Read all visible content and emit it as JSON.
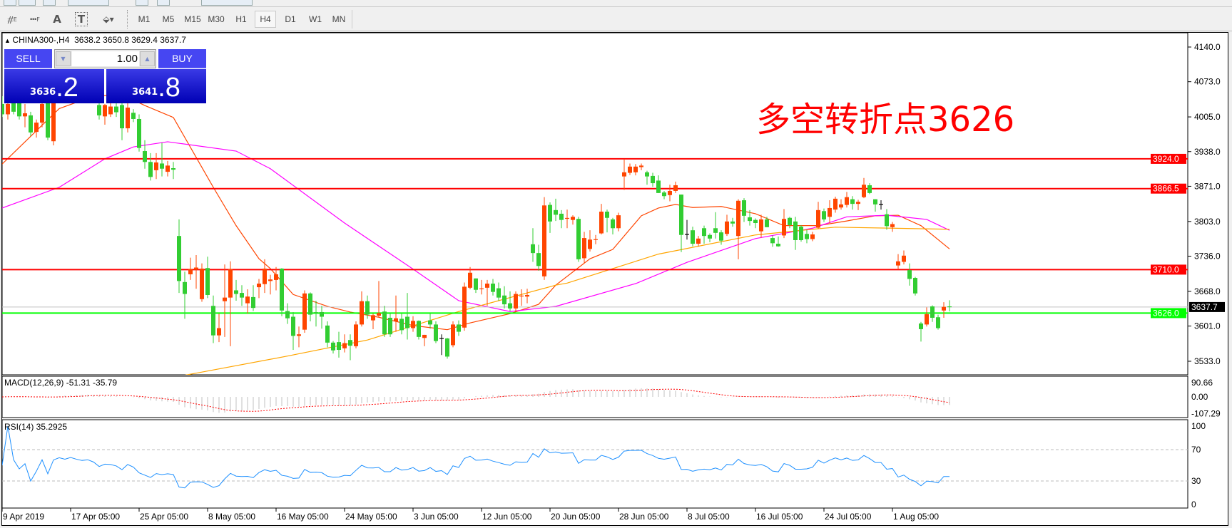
{
  "toolbar": {
    "tools": [
      {
        "name": "line-studies-elliott-icon",
        "glyph": "⧣",
        "sub": "E"
      },
      {
        "name": "fibonacci-icon",
        "glyph": "┅",
        "sub": "F"
      },
      {
        "name": "text-icon",
        "glyph": "A",
        "sub": ""
      },
      {
        "name": "text-label-icon",
        "glyph": "T",
        "sub": ""
      },
      {
        "name": "arrows-icon",
        "glyph": "⬙▾",
        "sub": ""
      }
    ],
    "timeframes": [
      "M1",
      "M5",
      "M15",
      "M30",
      "H1",
      "H4",
      "D1",
      "W1",
      "MN"
    ],
    "selected_timeframe": "H4"
  },
  "header": {
    "symbol": "CHINA300-,H4",
    "ohlc": "3638.2 3650.8 3629.4 3637.7"
  },
  "trade_panel": {
    "sell_label": "SELL",
    "buy_label": "BUY",
    "lot": "1.00",
    "sell_price_main": "3636",
    "sell_price_frac": ".2",
    "buy_price_main": "3641",
    "buy_price_frac": ".8"
  },
  "annotation": "多空转折点3626",
  "colors": {
    "up_candle": "#ff4500",
    "down_candle": "#32cd32",
    "ma_fast": "#ff4500",
    "ma_mid": "#ff00ff",
    "ma_slow": "#ffa500",
    "resistance": "#ff0000",
    "pivot": "#00ff00",
    "price_line": "#c0c0c0",
    "rsi": "#1e90ff",
    "macd_hist": "#c0c0c0",
    "macd_signal": "#ff0000"
  },
  "chart_data": {
    "type": "candlestick",
    "symbol": "CHINA300-",
    "timeframe": "H4",
    "ylim": [
      3500,
      4160
    ],
    "price_ticks": [
      "4140.0",
      "4073.0",
      "4005.0",
      "3938.0",
      "3871.0",
      "3803.0",
      "3736.0",
      "3668.0",
      "3601.0",
      "3533.0"
    ],
    "x_labels": [
      "9 Apr 2019",
      "17 Apr 05:00",
      "25 Apr 05:00",
      "8 May 05:00",
      "16 May 05:00",
      "24 May 05:00",
      "3 Jun 05:00",
      "12 Jun 05:00",
      "20 Jun 05:00",
      "28 Jun 05:00",
      "8 Jul 05:00",
      "16 Jul 05:00",
      "24 Jul 05:00",
      "1 Aug 05:00"
    ],
    "candles_ohlc": [
      [
        4030,
        4045,
        4005,
        4010
      ],
      [
        4010,
        4040,
        4000,
        4030
      ],
      [
        4035,
        4045,
        4010,
        4015
      ],
      [
        4035,
        4050,
        4000,
        4006
      ],
      [
        4006,
        4030,
        3985,
        4012
      ],
      [
        4008,
        4015,
        3968,
        3975
      ],
      [
        3976,
        4000,
        3965,
        3994
      ],
      [
        3994,
        4040,
        3985,
        4030
      ],
      [
        4045,
        4060,
        3960,
        3965
      ],
      [
        3958,
        4065,
        3950,
        4050
      ],
      [
        4050,
        4080,
        4040,
        4070
      ],
      [
        4070,
        4090,
        4055,
        4060
      ],
      [
        4060,
        4085,
        4050,
        4078
      ],
      [
        4078,
        4095,
        4060,
        4065
      ],
      [
        4065,
        4080,
        4045,
        4055
      ],
      [
        4055,
        4070,
        4040,
        4062
      ],
      [
        4062,
        4070,
        4035,
        4045
      ],
      [
        4028,
        4040,
        4000,
        4008
      ],
      [
        4006,
        4030,
        3990,
        4028
      ],
      [
        4010,
        4040,
        4005,
        4025
      ],
      [
        4025,
        4040,
        4005,
        4014
      ],
      [
        4028,
        4040,
        3960,
        3983
      ],
      [
        3983,
        4040,
        3975,
        4023
      ],
      [
        4013,
        4020,
        3995,
        4001
      ],
      [
        4001,
        4010,
        3938,
        3945
      ],
      [
        3939,
        3960,
        3905,
        3918
      ],
      [
        3918,
        3935,
        3882,
        3889
      ],
      [
        3902,
        3935,
        3885,
        3917
      ],
      [
        3915,
        3955,
        3890,
        3905
      ],
      [
        3899,
        3920,
        3890,
        3911
      ],
      [
        3906,
        3918,
        3885,
        3903
      ],
      [
        3775,
        3807,
        3665,
        3688
      ],
      [
        3686,
        3706,
        3615,
        3663
      ],
      [
        3701,
        3733,
        3690,
        3711
      ],
      [
        3710,
        3738,
        3673,
        3714
      ],
      [
        3653,
        3722,
        3648,
        3712
      ],
      [
        3713,
        3735,
        3655,
        3661
      ],
      [
        3640,
        3660,
        3568,
        3583
      ],
      [
        3583,
        3625,
        3570,
        3597
      ],
      [
        3649,
        3720,
        3580,
        3656
      ],
      [
        3656,
        3726,
        3562,
        3711
      ],
      [
        3670,
        3690,
        3650,
        3663
      ],
      [
        3665,
        3680,
        3640,
        3656
      ],
      [
        3645,
        3672,
        3625,
        3658
      ],
      [
        3657,
        3680,
        3630,
        3636
      ],
      [
        3676,
        3692,
        3655,
        3683
      ],
      [
        3682,
        3730,
        3665,
        3712
      ],
      [
        3688,
        3700,
        3662,
        3691
      ],
      [
        3690,
        3715,
        3670,
        3701
      ],
      [
        3712,
        3713,
        3620,
        3631
      ],
      [
        3630,
        3645,
        3605,
        3616
      ],
      [
        3619,
        3628,
        3555,
        3582
      ],
      [
        3582,
        3600,
        3560,
        3585
      ],
      [
        3594,
        3670,
        3588,
        3664
      ],
      [
        3664,
        3666,
        3610,
        3623
      ],
      [
        3627,
        3650,
        3600,
        3625
      ],
      [
        3628,
        3640,
        3596,
        3619
      ],
      [
        3602,
        3610,
        3560,
        3569
      ],
      [
        3569,
        3572,
        3548,
        3554
      ],
      [
        3570,
        3590,
        3540,
        3555
      ],
      [
        3558,
        3585,
        3550,
        3568
      ],
      [
        3574,
        3585,
        3535,
        3563
      ],
      [
        3562,
        3610,
        3558,
        3604
      ],
      [
        3604,
        3668,
        3600,
        3649
      ],
      [
        3649,
        3660,
        3615,
        3623
      ],
      [
        3612,
        3625,
        3595,
        3622
      ],
      [
        3621,
        3688,
        3618,
        3626
      ],
      [
        3629,
        3640,
        3580,
        3585
      ],
      [
        3617,
        3625,
        3580,
        3585
      ],
      [
        3610,
        3660,
        3590,
        3616
      ],
      [
        3615,
        3625,
        3585,
        3593
      ],
      [
        3619,
        3665,
        3575,
        3597
      ],
      [
        3597,
        3620,
        3590,
        3611
      ],
      [
        3611,
        3612,
        3575,
        3580
      ],
      [
        3578,
        3584,
        3562,
        3584
      ],
      [
        3612,
        3625,
        3596,
        3604
      ],
      [
        3604,
        3610,
        3568,
        3572
      ],
      [
        3577,
        3585,
        3545,
        3577
      ],
      [
        3577,
        3578,
        3538,
        3542
      ],
      [
        3564,
        3610,
        3560,
        3604
      ],
      [
        3604,
        3612,
        3582,
        3590
      ],
      [
        3598,
        3685,
        3592,
        3677
      ],
      [
        3675,
        3715,
        3672,
        3704
      ],
      [
        3693,
        3693,
        3665,
        3671
      ],
      [
        3672,
        3690,
        3662,
        3673
      ],
      [
        3675,
        3690,
        3640,
        3683
      ],
      [
        3683,
        3692,
        3660,
        3667
      ],
      [
        3674,
        3685,
        3650,
        3656
      ],
      [
        3660,
        3678,
        3635,
        3643
      ],
      [
        3645,
        3668,
        3630,
        3635
      ],
      [
        3635,
        3668,
        3628,
        3663
      ],
      [
        3657,
        3672,
        3640,
        3659
      ],
      [
        3658,
        3673,
        3645,
        3661
      ],
      [
        3759,
        3790,
        3725,
        3742
      ],
      [
        3742,
        3758,
        3708,
        3717
      ],
      [
        3697,
        3850,
        3690,
        3834
      ],
      [
        3835,
        3840,
        3781,
        3803
      ],
      [
        3825,
        3847,
        3804,
        3816
      ],
      [
        3818,
        3825,
        3790,
        3806
      ],
      [
        3808,
        3826,
        3790,
        3809
      ],
      [
        3806,
        3815,
        3797,
        3812
      ],
      [
        3808,
        3812,
        3725,
        3730
      ],
      [
        3732,
        3783,
        3723,
        3771
      ],
      [
        3750,
        3786,
        3745,
        3768
      ],
      [
        3766,
        3777,
        3759,
        3768
      ],
      [
        3780,
        3837,
        3778,
        3822
      ],
      [
        3822,
        3826,
        3782,
        3810
      ],
      [
        3807,
        3810,
        3778,
        3790
      ],
      [
        3790,
        3820,
        3784,
        3815
      ],
      [
        3890,
        3924,
        3864,
        3898
      ],
      [
        3897,
        3915,
        3893,
        3909
      ],
      [
        3898,
        3914,
        3892,
        3909
      ],
      [
        3908,
        3915,
        3902,
        3911
      ],
      [
        3898,
        3901,
        3874,
        3890
      ],
      [
        3891,
        3897,
        3870,
        3877
      ],
      [
        3882,
        3892,
        3858,
        3858
      ],
      [
        3859,
        3862,
        3846,
        3852
      ],
      [
        3854,
        3874,
        3842,
        3862
      ],
      [
        3862,
        3880,
        3858,
        3873
      ],
      [
        3855,
        3855,
        3744,
        3777
      ],
      [
        3778,
        3806,
        3768,
        3778
      ],
      [
        3786,
        3793,
        3755,
        3760
      ],
      [
        3760,
        3775,
        3755,
        3770
      ],
      [
        3790,
        3795,
        3760,
        3775
      ],
      [
        3777,
        3780,
        3763,
        3770
      ],
      [
        3790,
        3821,
        3770,
        3781
      ],
      [
        3782,
        3786,
        3758,
        3766
      ],
      [
        3779,
        3816,
        3775,
        3803
      ],
      [
        3803,
        3810,
        3793,
        3799
      ],
      [
        3775,
        3846,
        3730,
        3843
      ],
      [
        3844,
        3848,
        3802,
        3814
      ],
      [
        3811,
        3825,
        3795,
        3804
      ],
      [
        3806,
        3809,
        3790,
        3800
      ],
      [
        3784,
        3816,
        3772,
        3807
      ],
      [
        3807,
        3812,
        3792,
        3792
      ],
      [
        3771,
        3776,
        3754,
        3761
      ],
      [
        3760,
        3774,
        3754,
        3755
      ],
      [
        3776,
        3827,
        3771,
        3808
      ],
      [
        3810,
        3812,
        3790,
        3796
      ],
      [
        3803,
        3812,
        3748,
        3767
      ],
      [
        3793,
        3796,
        3764,
        3767
      ],
      [
        3779,
        3787,
        3761,
        3769
      ],
      [
        3769,
        3783,
        3765,
        3778
      ],
      [
        3791,
        3841,
        3789,
        3825
      ],
      [
        3823,
        3828,
        3802,
        3807
      ],
      [
        3812,
        3844,
        3800,
        3829
      ],
      [
        3826,
        3851,
        3820,
        3847
      ],
      [
        3830,
        3846,
        3826,
        3836
      ],
      [
        3835,
        3860,
        3830,
        3850
      ],
      [
        3846,
        3852,
        3826,
        3837
      ],
      [
        3837,
        3845,
        3825,
        3841
      ],
      [
        3850,
        3887,
        3848,
        3874
      ],
      [
        3873,
        3877,
        3856,
        3858
      ],
      [
        3846,
        3846,
        3822,
        3836
      ],
      [
        3836,
        3844,
        3826,
        3836
      ],
      [
        3817,
        3827,
        3787,
        3794
      ],
      [
        3792,
        3802,
        3783,
        3798
      ],
      [
        3718,
        3740,
        3710,
        3726
      ],
      [
        3725,
        3747,
        3720,
        3737
      ],
      [
        3709,
        3722,
        3679,
        3692
      ],
      [
        3694,
        3696,
        3660,
        3664
      ],
      [
        3606,
        3609,
        3571,
        3595
      ],
      [
        3604,
        3637,
        3600,
        3624
      ],
      [
        3639,
        3641,
        3609,
        3617
      ],
      [
        3618,
        3623,
        3594,
        3597
      ],
      [
        3631,
        3647,
        3617,
        3638
      ],
      [
        3638.2,
        3650.8,
        3629.4,
        3637.7
      ]
    ],
    "moving_averages": [
      {
        "key": "ma_fast",
        "points": [
          [
            0,
            3914
          ],
          [
            10,
            4021
          ],
          [
            16,
            4045
          ],
          [
            21,
            4048
          ],
          [
            25,
            4027
          ],
          [
            30,
            4004
          ],
          [
            37,
            3869
          ],
          [
            41,
            3795
          ],
          [
            45,
            3731
          ],
          [
            47,
            3712
          ],
          [
            51,
            3662
          ],
          [
            57,
            3639
          ],
          [
            61,
            3628
          ],
          [
            66,
            3618
          ],
          [
            72,
            3602
          ],
          [
            78,
            3594
          ],
          [
            82,
            3607
          ],
          [
            89,
            3625
          ],
          [
            94,
            3643
          ],
          [
            97,
            3680
          ],
          [
            103,
            3731
          ],
          [
            107,
            3749
          ],
          [
            112,
            3814
          ],
          [
            115,
            3829
          ],
          [
            118,
            3836
          ],
          [
            121,
            3830
          ],
          [
            126,
            3832
          ],
          [
            132,
            3818
          ],
          [
            137,
            3795
          ],
          [
            143,
            3795
          ],
          [
            148,
            3804
          ],
          [
            153,
            3814
          ],
          [
            157,
            3815
          ],
          [
            161,
            3795
          ],
          [
            166,
            3750
          ]
        ]
      },
      {
        "key": "ma_mid",
        "points": [
          [
            0,
            3829
          ],
          [
            10,
            3869
          ],
          [
            18,
            3924
          ],
          [
            23,
            3947
          ],
          [
            29,
            3957
          ],
          [
            41,
            3939
          ],
          [
            47,
            3905
          ],
          [
            60,
            3800
          ],
          [
            72,
            3711
          ],
          [
            80,
            3650
          ],
          [
            89,
            3629
          ],
          [
            97,
            3639
          ],
          [
            111,
            3683
          ],
          [
            120,
            3724
          ],
          [
            132,
            3770
          ],
          [
            142,
            3790
          ],
          [
            148,
            3812
          ],
          [
            155,
            3815
          ],
          [
            162,
            3807
          ],
          [
            166,
            3786
          ]
        ]
      },
      {
        "key": "ma_slow",
        "points": [
          [
            29,
            3500
          ],
          [
            34,
            3510
          ],
          [
            50,
            3543
          ],
          [
            64,
            3574
          ],
          [
            80,
            3629
          ],
          [
            97,
            3680
          ],
          [
            99,
            3684
          ],
          [
            115,
            3740
          ],
          [
            132,
            3777
          ],
          [
            142,
            3788
          ],
          [
            146,
            3792
          ],
          [
            166,
            3788
          ]
        ]
      }
    ],
    "levels": [
      {
        "value": 3924.0,
        "label": "3924.0",
        "color": "#ff0000"
      },
      {
        "value": 3866.5,
        "label": "3866.5",
        "color": "#ff0000"
      },
      {
        "value": 3710.0,
        "label": "3710.0",
        "color": "#ff0000"
      },
      {
        "value": 3626.0,
        "label": "3626.0",
        "color": "#00ff00"
      }
    ],
    "current_price": {
      "value": 3637.7,
      "label": "3637.7"
    },
    "macd": {
      "title": "MACD(12,26,9) -51.31 -35.79",
      "params": [
        12,
        26,
        9
      ],
      "ticks": [
        "90.66",
        "0.00",
        "-107.29"
      ],
      "range": [
        -107.29,
        90.66
      ]
    },
    "rsi": {
      "title": "RSI(14) 35.2925",
      "period": 14,
      "ticks": [
        "100",
        "70",
        "30",
        "0"
      ],
      "levels": [
        70,
        30
      ]
    }
  }
}
